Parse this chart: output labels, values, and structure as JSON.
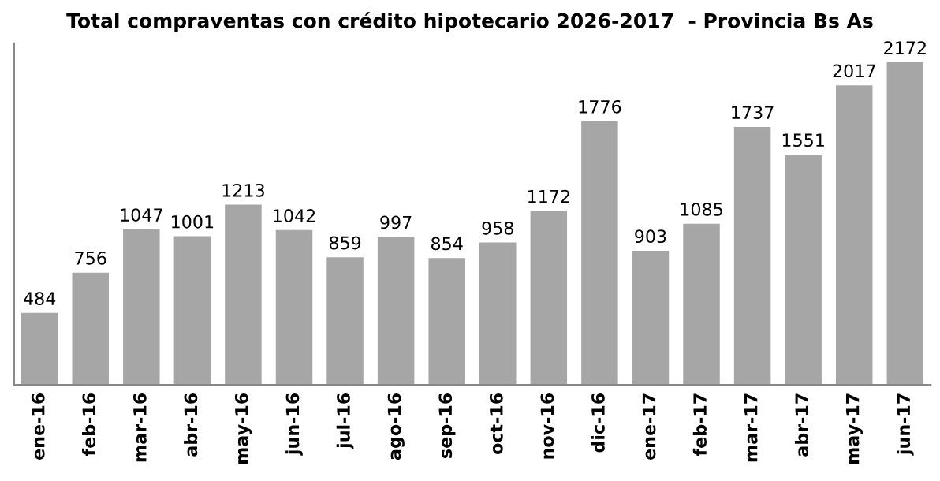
{
  "chart_data": {
    "type": "bar",
    "title": "Total compraventas con crédito hipotecario 2026-2017  - Provincia Bs As",
    "categories": [
      "ene-16",
      "feb-16",
      "mar-16",
      "abr-16",
      "may-16",
      "jun-16",
      "jul-16",
      "ago-16",
      "sep-16",
      "oct-16",
      "nov-16",
      "dic-16",
      "ene-17",
      "feb-17",
      "mar-17",
      "abr-17",
      "may-17",
      "jun-17"
    ],
    "values": [
      484,
      756,
      1047,
      1001,
      1213,
      1042,
      859,
      997,
      854,
      958,
      1172,
      1776,
      903,
      1085,
      1737,
      1551,
      2017,
      2172
    ],
    "color": "#a6a6a6",
    "ylim": [
      0,
      2300
    ],
    "data_labels": true,
    "grid": false,
    "legend": false,
    "tick_labels": "x"
  }
}
